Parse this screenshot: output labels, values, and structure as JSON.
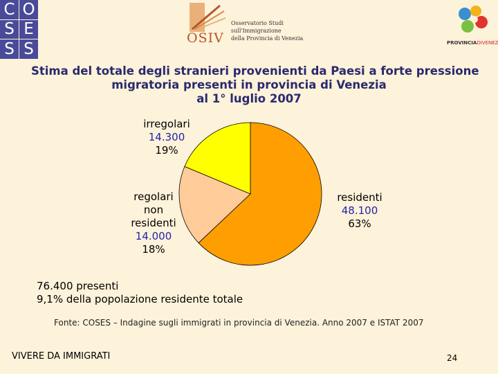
{
  "logos": {
    "coses": [
      "C",
      "O",
      "S",
      "E",
      "S",
      "S"
    ],
    "osiv_word": "OSIV",
    "osiv_desc": [
      "Osservatorio Studi",
      "sull'Immigrazione",
      "della Provincia di Venezia"
    ],
    "provincia_a": "PROVINCIA",
    "provincia_b": "DIVENEZIA"
  },
  "title": {
    "line1": "Stima del totale degli stranieri provenienti da Paesi a forte pressione",
    "line2": "migratoria presenti in provincia di Venezia",
    "line3": "al 1° luglio 2007"
  },
  "chart_data": {
    "type": "pie",
    "slices": [
      {
        "label": "residenti",
        "value": 48100,
        "value_text": "48.100",
        "percent": "63%",
        "color": "#ff9e00"
      },
      {
        "label": "regolari non residenti",
        "label_lines": [
          "regolari",
          "non",
          "residenti"
        ],
        "value": 14000,
        "value_text": "14.000",
        "percent": "18%",
        "color": "#ffcc99"
      },
      {
        "label": "irregolari",
        "value": 14300,
        "value_text": "14.300",
        "percent": "19%",
        "color": "#ffff00"
      }
    ]
  },
  "summary": {
    "line1": "76.400 presenti",
    "line2": "9,1% della popolazione residente totale"
  },
  "source": "Fonte: COSES – Indagine sugli immigrati in provincia di Venezia. Anno 2007 e ISTAT 2007",
  "footer": {
    "left": "VIVERE DA IMMIGRATI",
    "page": "24"
  }
}
